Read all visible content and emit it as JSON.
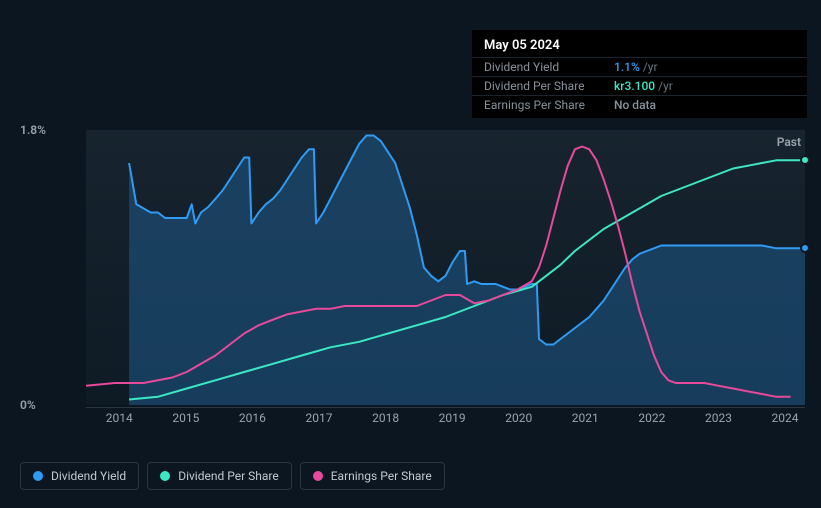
{
  "tooltip": {
    "title": "May 05 2024",
    "rows": [
      {
        "label": "Dividend Yield",
        "value": "1.1%",
        "unit": "/yr",
        "color": "#2f9bf4"
      },
      {
        "label": "Dividend Per Share",
        "value": "kr3.100",
        "unit": "/yr",
        "color": "#3ce8c3"
      },
      {
        "label": "Earnings Per Share",
        "value": "No data",
        "unit": "",
        "color": "#88929b"
      }
    ]
  },
  "chart": {
    "type": "line-area",
    "background": "#0b1620",
    "plot_background": "linear-gradient(180deg, #16232f 0%, #0f1b25 100%)",
    "grid_color": "#2a3642",
    "past_label": "Past",
    "y_axis": {
      "ticks": [
        {
          "label": "1.8%",
          "frac": 0.0
        },
        {
          "label": "0%",
          "frac": 1.0
        }
      ],
      "color": "#9aa3ac",
      "fontsize": 12
    },
    "x_axis": {
      "ticks": [
        "2014",
        "2015",
        "2016",
        "2017",
        "2018",
        "2019",
        "2020",
        "2021",
        "2022",
        "2023",
        "2024"
      ],
      "color": "#9aa3ac",
      "fontsize": 12
    },
    "series": [
      {
        "name": "Dividend Yield",
        "color": "#2f9bf4",
        "fill": true,
        "fill_color": "#1f5a8a",
        "fill_opacity": 0.55,
        "line_width": 2,
        "points": [
          [
            0.06,
            0.12
          ],
          [
            0.07,
            0.27
          ],
          [
            0.09,
            0.3
          ],
          [
            0.1,
            0.3
          ],
          [
            0.11,
            0.32
          ],
          [
            0.12,
            0.32
          ],
          [
            0.13,
            0.32
          ],
          [
            0.14,
            0.32
          ],
          [
            0.147,
            0.27
          ],
          [
            0.152,
            0.34
          ],
          [
            0.16,
            0.3
          ],
          [
            0.17,
            0.28
          ],
          [
            0.18,
            0.25
          ],
          [
            0.19,
            0.22
          ],
          [
            0.2,
            0.18
          ],
          [
            0.21,
            0.14
          ],
          [
            0.22,
            0.1
          ],
          [
            0.227,
            0.1
          ],
          [
            0.23,
            0.34
          ],
          [
            0.24,
            0.3
          ],
          [
            0.25,
            0.27
          ],
          [
            0.26,
            0.25
          ],
          [
            0.27,
            0.22
          ],
          [
            0.28,
            0.18
          ],
          [
            0.29,
            0.14
          ],
          [
            0.3,
            0.1
          ],
          [
            0.31,
            0.07
          ],
          [
            0.317,
            0.07
          ],
          [
            0.32,
            0.34
          ],
          [
            0.33,
            0.3
          ],
          [
            0.34,
            0.25
          ],
          [
            0.35,
            0.2
          ],
          [
            0.36,
            0.15
          ],
          [
            0.37,
            0.1
          ],
          [
            0.38,
            0.05
          ],
          [
            0.39,
            0.02
          ],
          [
            0.4,
            0.02
          ],
          [
            0.41,
            0.04
          ],
          [
            0.42,
            0.08
          ],
          [
            0.43,
            0.12
          ],
          [
            0.44,
            0.2
          ],
          [
            0.45,
            0.28
          ],
          [
            0.46,
            0.38
          ],
          [
            0.47,
            0.5
          ],
          [
            0.48,
            0.53
          ],
          [
            0.49,
            0.55
          ],
          [
            0.5,
            0.53
          ],
          [
            0.51,
            0.48
          ],
          [
            0.52,
            0.44
          ],
          [
            0.527,
            0.44
          ],
          [
            0.53,
            0.56
          ],
          [
            0.54,
            0.55
          ],
          [
            0.55,
            0.56
          ],
          [
            0.56,
            0.56
          ],
          [
            0.57,
            0.56
          ],
          [
            0.58,
            0.57
          ],
          [
            0.59,
            0.58
          ],
          [
            0.6,
            0.58
          ],
          [
            0.61,
            0.57
          ],
          [
            0.62,
            0.56
          ],
          [
            0.627,
            0.56
          ],
          [
            0.63,
            0.76
          ],
          [
            0.64,
            0.78
          ],
          [
            0.65,
            0.78
          ],
          [
            0.66,
            0.76
          ],
          [
            0.67,
            0.74
          ],
          [
            0.68,
            0.72
          ],
          [
            0.69,
            0.7
          ],
          [
            0.7,
            0.68
          ],
          [
            0.71,
            0.65
          ],
          [
            0.72,
            0.62
          ],
          [
            0.73,
            0.58
          ],
          [
            0.74,
            0.54
          ],
          [
            0.75,
            0.5
          ],
          [
            0.76,
            0.47
          ],
          [
            0.77,
            0.45
          ],
          [
            0.78,
            0.44
          ],
          [
            0.79,
            0.43
          ],
          [
            0.8,
            0.42
          ],
          [
            0.82,
            0.42
          ],
          [
            0.84,
            0.42
          ],
          [
            0.86,
            0.42
          ],
          [
            0.88,
            0.42
          ],
          [
            0.9,
            0.42
          ],
          [
            0.92,
            0.42
          ],
          [
            0.94,
            0.42
          ],
          [
            0.96,
            0.43
          ],
          [
            0.98,
            0.43
          ],
          [
            1.0,
            0.43
          ]
        ]
      },
      {
        "name": "Dividend Per Share",
        "color": "#3ce8c3",
        "fill": false,
        "line_width": 2,
        "points": [
          [
            0.06,
            0.98
          ],
          [
            0.1,
            0.97
          ],
          [
            0.14,
            0.94
          ],
          [
            0.18,
            0.91
          ],
          [
            0.22,
            0.88
          ],
          [
            0.26,
            0.85
          ],
          [
            0.3,
            0.82
          ],
          [
            0.34,
            0.79
          ],
          [
            0.38,
            0.77
          ],
          [
            0.42,
            0.74
          ],
          [
            0.46,
            0.71
          ],
          [
            0.5,
            0.68
          ],
          [
            0.54,
            0.64
          ],
          [
            0.58,
            0.6
          ],
          [
            0.62,
            0.57
          ],
          [
            0.64,
            0.53
          ],
          [
            0.66,
            0.49
          ],
          [
            0.68,
            0.44
          ],
          [
            0.7,
            0.4
          ],
          [
            0.72,
            0.36
          ],
          [
            0.74,
            0.33
          ],
          [
            0.76,
            0.3
          ],
          [
            0.78,
            0.27
          ],
          [
            0.8,
            0.24
          ],
          [
            0.82,
            0.22
          ],
          [
            0.84,
            0.2
          ],
          [
            0.86,
            0.18
          ],
          [
            0.88,
            0.16
          ],
          [
            0.9,
            0.14
          ],
          [
            0.92,
            0.13
          ],
          [
            0.94,
            0.12
          ],
          [
            0.96,
            0.11
          ],
          [
            0.98,
            0.11
          ],
          [
            1.0,
            0.11
          ]
        ]
      },
      {
        "name": "Earnings Per Share",
        "color": "#e84a9b",
        "fill": false,
        "line_width": 2,
        "points": [
          [
            0.0,
            0.93
          ],
          [
            0.04,
            0.92
          ],
          [
            0.08,
            0.92
          ],
          [
            0.12,
            0.9
          ],
          [
            0.14,
            0.88
          ],
          [
            0.16,
            0.85
          ],
          [
            0.18,
            0.82
          ],
          [
            0.2,
            0.78
          ],
          [
            0.22,
            0.74
          ],
          [
            0.24,
            0.71
          ],
          [
            0.26,
            0.69
          ],
          [
            0.28,
            0.67
          ],
          [
            0.3,
            0.66
          ],
          [
            0.32,
            0.65
          ],
          [
            0.34,
            0.65
          ],
          [
            0.36,
            0.64
          ],
          [
            0.38,
            0.64
          ],
          [
            0.4,
            0.64
          ],
          [
            0.42,
            0.64
          ],
          [
            0.44,
            0.64
          ],
          [
            0.46,
            0.64
          ],
          [
            0.48,
            0.62
          ],
          [
            0.5,
            0.6
          ],
          [
            0.52,
            0.6
          ],
          [
            0.54,
            0.63
          ],
          [
            0.56,
            0.62
          ],
          [
            0.58,
            0.6
          ],
          [
            0.6,
            0.58
          ],
          [
            0.62,
            0.55
          ],
          [
            0.63,
            0.5
          ],
          [
            0.64,
            0.42
          ],
          [
            0.65,
            0.32
          ],
          [
            0.66,
            0.22
          ],
          [
            0.67,
            0.13
          ],
          [
            0.68,
            0.07
          ],
          [
            0.69,
            0.06
          ],
          [
            0.7,
            0.07
          ],
          [
            0.71,
            0.11
          ],
          [
            0.72,
            0.18
          ],
          [
            0.73,
            0.26
          ],
          [
            0.74,
            0.35
          ],
          [
            0.75,
            0.45
          ],
          [
            0.76,
            0.56
          ],
          [
            0.77,
            0.66
          ],
          [
            0.78,
            0.74
          ],
          [
            0.79,
            0.82
          ],
          [
            0.8,
            0.88
          ],
          [
            0.81,
            0.91
          ],
          [
            0.82,
            0.92
          ],
          [
            0.84,
            0.92
          ],
          [
            0.86,
            0.92
          ],
          [
            0.88,
            0.93
          ],
          [
            0.9,
            0.94
          ],
          [
            0.92,
            0.95
          ],
          [
            0.94,
            0.96
          ],
          [
            0.96,
            0.97
          ],
          [
            0.98,
            0.97
          ]
        ]
      }
    ],
    "end_markers": [
      {
        "series": 0,
        "color": "#2f9bf4"
      },
      {
        "series": 1,
        "color": "#3ce8c3"
      }
    ]
  },
  "legend": {
    "items": [
      {
        "label": "Dividend Yield",
        "color": "#2f9bf4"
      },
      {
        "label": "Dividend Per Share",
        "color": "#3ce8c3"
      },
      {
        "label": "Earnings Per Share",
        "color": "#e84a9b"
      }
    ]
  }
}
